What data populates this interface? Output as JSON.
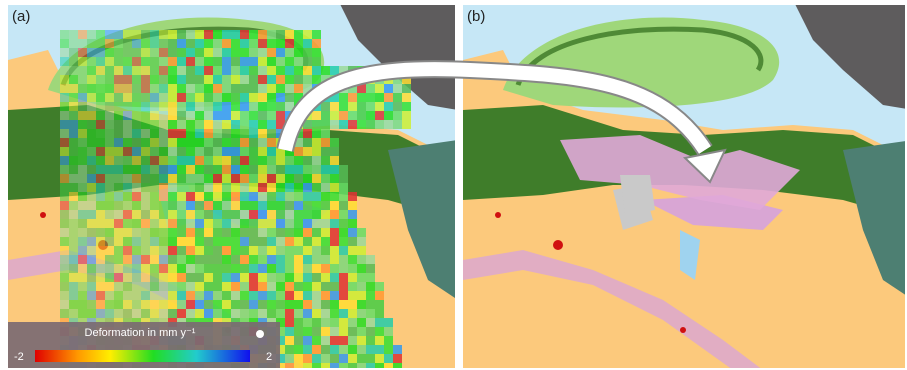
{
  "panels": [
    {
      "label": "(a)"
    },
    {
      "label": "(b)"
    }
  ],
  "legend": {
    "title": "Deformation in mm y⁻¹",
    "min": -2,
    "max": 2
  }
}
